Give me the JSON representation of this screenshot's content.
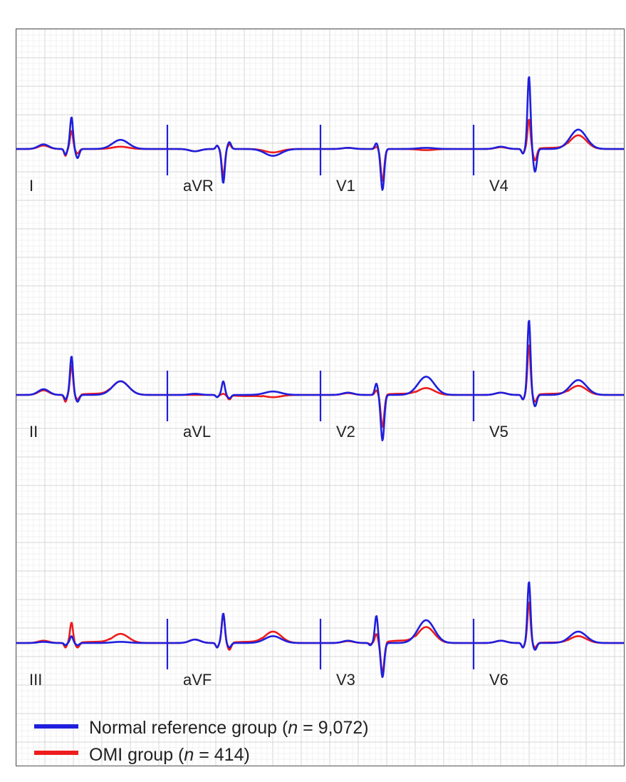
{
  "chart_data": {
    "type": "line",
    "title": "",
    "grid": true,
    "legend_placement": "bottom-left",
    "colors": {
      "normal": "#1f1fdd",
      "omi": "#ee1c1c",
      "grid_minor": "#ececec",
      "grid_major": "#d6d6d6"
    },
    "series": [
      {
        "key": "normal",
        "prefix": "Normal reference group (",
        "n_symbol": "n",
        "suffix": " = 9,072)"
      },
      {
        "key": "omi",
        "prefix": "OMI group (",
        "n_symbol": "n",
        "suffix": " = 414)"
      }
    ],
    "leads": [
      {
        "name": "I",
        "row": 0,
        "col": 0,
        "pAmp": 0.2,
        "qAmp": 0.25,
        "rAmp": 1.4,
        "sAmp": 0.4,
        "tAmp": 0.4,
        "omi_p": 0.15,
        "omi_q": 0.3,
        "omi_r": 0.8,
        "omi_s": 0.2,
        "omi_t": 0.1,
        "omi_st": 0.0
      },
      {
        "name": "II",
        "row": 1,
        "col": 0,
        "pAmp": 0.25,
        "qAmp": 0.2,
        "rAmp": 1.7,
        "sAmp": 0.3,
        "tAmp": 0.6,
        "omi_p": 0.2,
        "omi_q": 0.3,
        "omi_r": 1.3,
        "omi_s": 0.2,
        "omi_t": 0.6,
        "omi_st": 0.05
      },
      {
        "name": "III",
        "row": 2,
        "col": 0,
        "pAmp": 0.05,
        "qAmp": 0.1,
        "rAmp": 0.3,
        "sAmp": 0.1,
        "tAmp": 0.05,
        "omi_p": 0.1,
        "omi_q": 0.2,
        "omi_r": 0.9,
        "omi_s": 0.2,
        "omi_t": 0.4,
        "omi_st": 0.05
      },
      {
        "name": "aVR",
        "row": 0,
        "col": 1,
        "pAmp": -0.1,
        "qAmp": -0.15,
        "rAmp": -1.5,
        "sAmp": -0.3,
        "tAmp": -0.3,
        "omi_p": -0.1,
        "omi_q": -0.15,
        "omi_r": -1.2,
        "omi_s": -0.2,
        "omi_t": -0.15,
        "omi_st": 0.0
      },
      {
        "name": "aVL",
        "row": 1,
        "col": 1,
        "pAmp": 0.05,
        "qAmp": 0.1,
        "rAmp": 0.6,
        "sAmp": 0.15,
        "tAmp": 0.15,
        "omi_p": 0.0,
        "omi_q": 0.1,
        "omi_r": 0.05,
        "omi_s": 0.2,
        "omi_t": -0.1,
        "omi_st": -0.05
      },
      {
        "name": "aVF",
        "row": 2,
        "col": 1,
        "pAmp": 0.15,
        "qAmp": 0.2,
        "rAmp": 1.3,
        "sAmp": 0.2,
        "tAmp": 0.3,
        "omi_p": 0.15,
        "omi_q": 0.2,
        "omi_r": 1.3,
        "omi_s": 0.3,
        "omi_t": 0.5,
        "omi_st": 0.05
      },
      {
        "name": "V1",
        "row": 0,
        "col": 2,
        "pAmp": 0.05,
        "qAmp": 0.0,
        "rAmp": 0.25,
        "sAmp": 1.8,
        "tAmp": 0.05,
        "omi_p": 0.05,
        "omi_q": 0.0,
        "omi_r": 0.1,
        "omi_s": 1.4,
        "omi_t": -0.05,
        "omi_st": 0.0
      },
      {
        "name": "V2",
        "row": 1,
        "col": 2,
        "pAmp": 0.1,
        "qAmp": 0.0,
        "rAmp": 0.5,
        "sAmp": 2.0,
        "tAmp": 0.8,
        "omi_p": 0.08,
        "omi_q": 0.0,
        "omi_r": 0.2,
        "omi_s": 1.4,
        "omi_t": 0.3,
        "omi_st": 0.05
      },
      {
        "name": "V3",
        "row": 2,
        "col": 2,
        "pAmp": 0.1,
        "qAmp": 0.1,
        "rAmp": 1.2,
        "sAmp": 1.5,
        "tAmp": 1.0,
        "omi_p": 0.08,
        "omi_q": 0.05,
        "omi_r": 0.4,
        "omi_s": 1.3,
        "omi_t": 0.7,
        "omi_st": 0.1
      },
      {
        "name": "V4",
        "row": 0,
        "col": 3,
        "pAmp": 0.1,
        "qAmp": 0.2,
        "rAmp": 3.2,
        "sAmp": 1.0,
        "tAmp": 0.85,
        "omi_p": 0.08,
        "omi_q": 0.2,
        "omi_r": 1.3,
        "omi_s": 0.5,
        "omi_t": 0.6,
        "omi_st": 0.05
      },
      {
        "name": "V5",
        "row": 1,
        "col": 3,
        "pAmp": 0.1,
        "qAmp": 0.2,
        "rAmp": 3.3,
        "sAmp": 0.5,
        "tAmp": 0.65,
        "omi_p": 0.1,
        "omi_q": 0.2,
        "omi_r": 2.2,
        "omi_s": 0.3,
        "omi_t": 0.4,
        "omi_st": 0.05
      },
      {
        "name": "V6",
        "row": 2,
        "col": 3,
        "pAmp": 0.1,
        "qAmp": 0.2,
        "rAmp": 2.7,
        "sAmp": 0.3,
        "tAmp": 0.5,
        "omi_p": 0.1,
        "omi_q": 0.2,
        "omi_r": 1.8,
        "omi_s": 0.2,
        "omi_t": 0.3,
        "omi_st": 0.02
      }
    ]
  }
}
